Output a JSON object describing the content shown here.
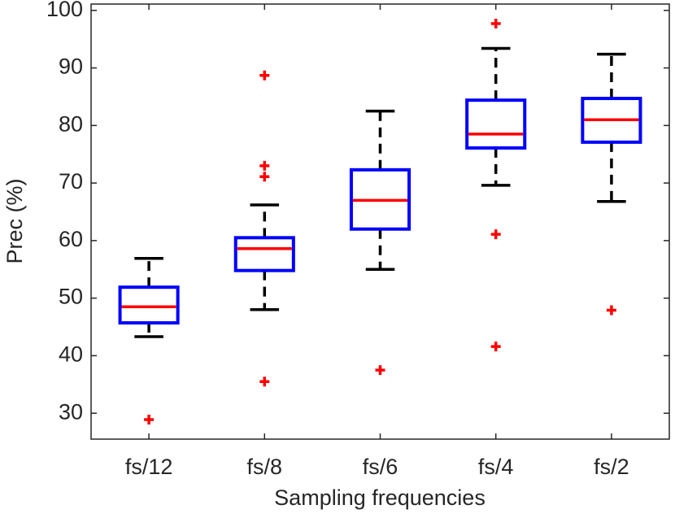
{
  "chart_data": {
    "type": "box",
    "xlabel": "Sampling frequencies",
    "ylabel": "Prec (%)",
    "categories": [
      "fs/12",
      "fs/8",
      "fs/6",
      "fs/4",
      "fs/2"
    ],
    "boxes": [
      {
        "min": 43.3,
        "q1": 45.7,
        "median": 48.5,
        "q3": 51.9,
        "max": 56.9,
        "outliers": [
          28.9
        ]
      },
      {
        "min": 48.0,
        "q1": 54.8,
        "median": 58.6,
        "q3": 60.5,
        "max": 66.2,
        "outliers": [
          88.7,
          73.0,
          71.1,
          35.5
        ]
      },
      {
        "min": 55.0,
        "q1": 62.0,
        "median": 67.0,
        "q3": 72.3,
        "max": 82.5,
        "outliers": [
          37.5
        ]
      },
      {
        "min": 69.6,
        "q1": 76.1,
        "median": 78.5,
        "q3": 84.4,
        "max": 93.4,
        "outliers": [
          97.7,
          61.1,
          41.6
        ]
      },
      {
        "min": 66.8,
        "q1": 77.1,
        "median": 81.0,
        "q3": 84.7,
        "max": 92.4,
        "outliers": [
          47.9
        ]
      }
    ],
    "box_color": "#0000ff",
    "median_color": "#ff0000",
    "whisker_color": "#000000",
    "outlier_color": "#ff0000",
    "ylim": [
      25.5,
      101.1
    ],
    "yticks": [
      30,
      40,
      50,
      60,
      70,
      80,
      90,
      100
    ]
  }
}
